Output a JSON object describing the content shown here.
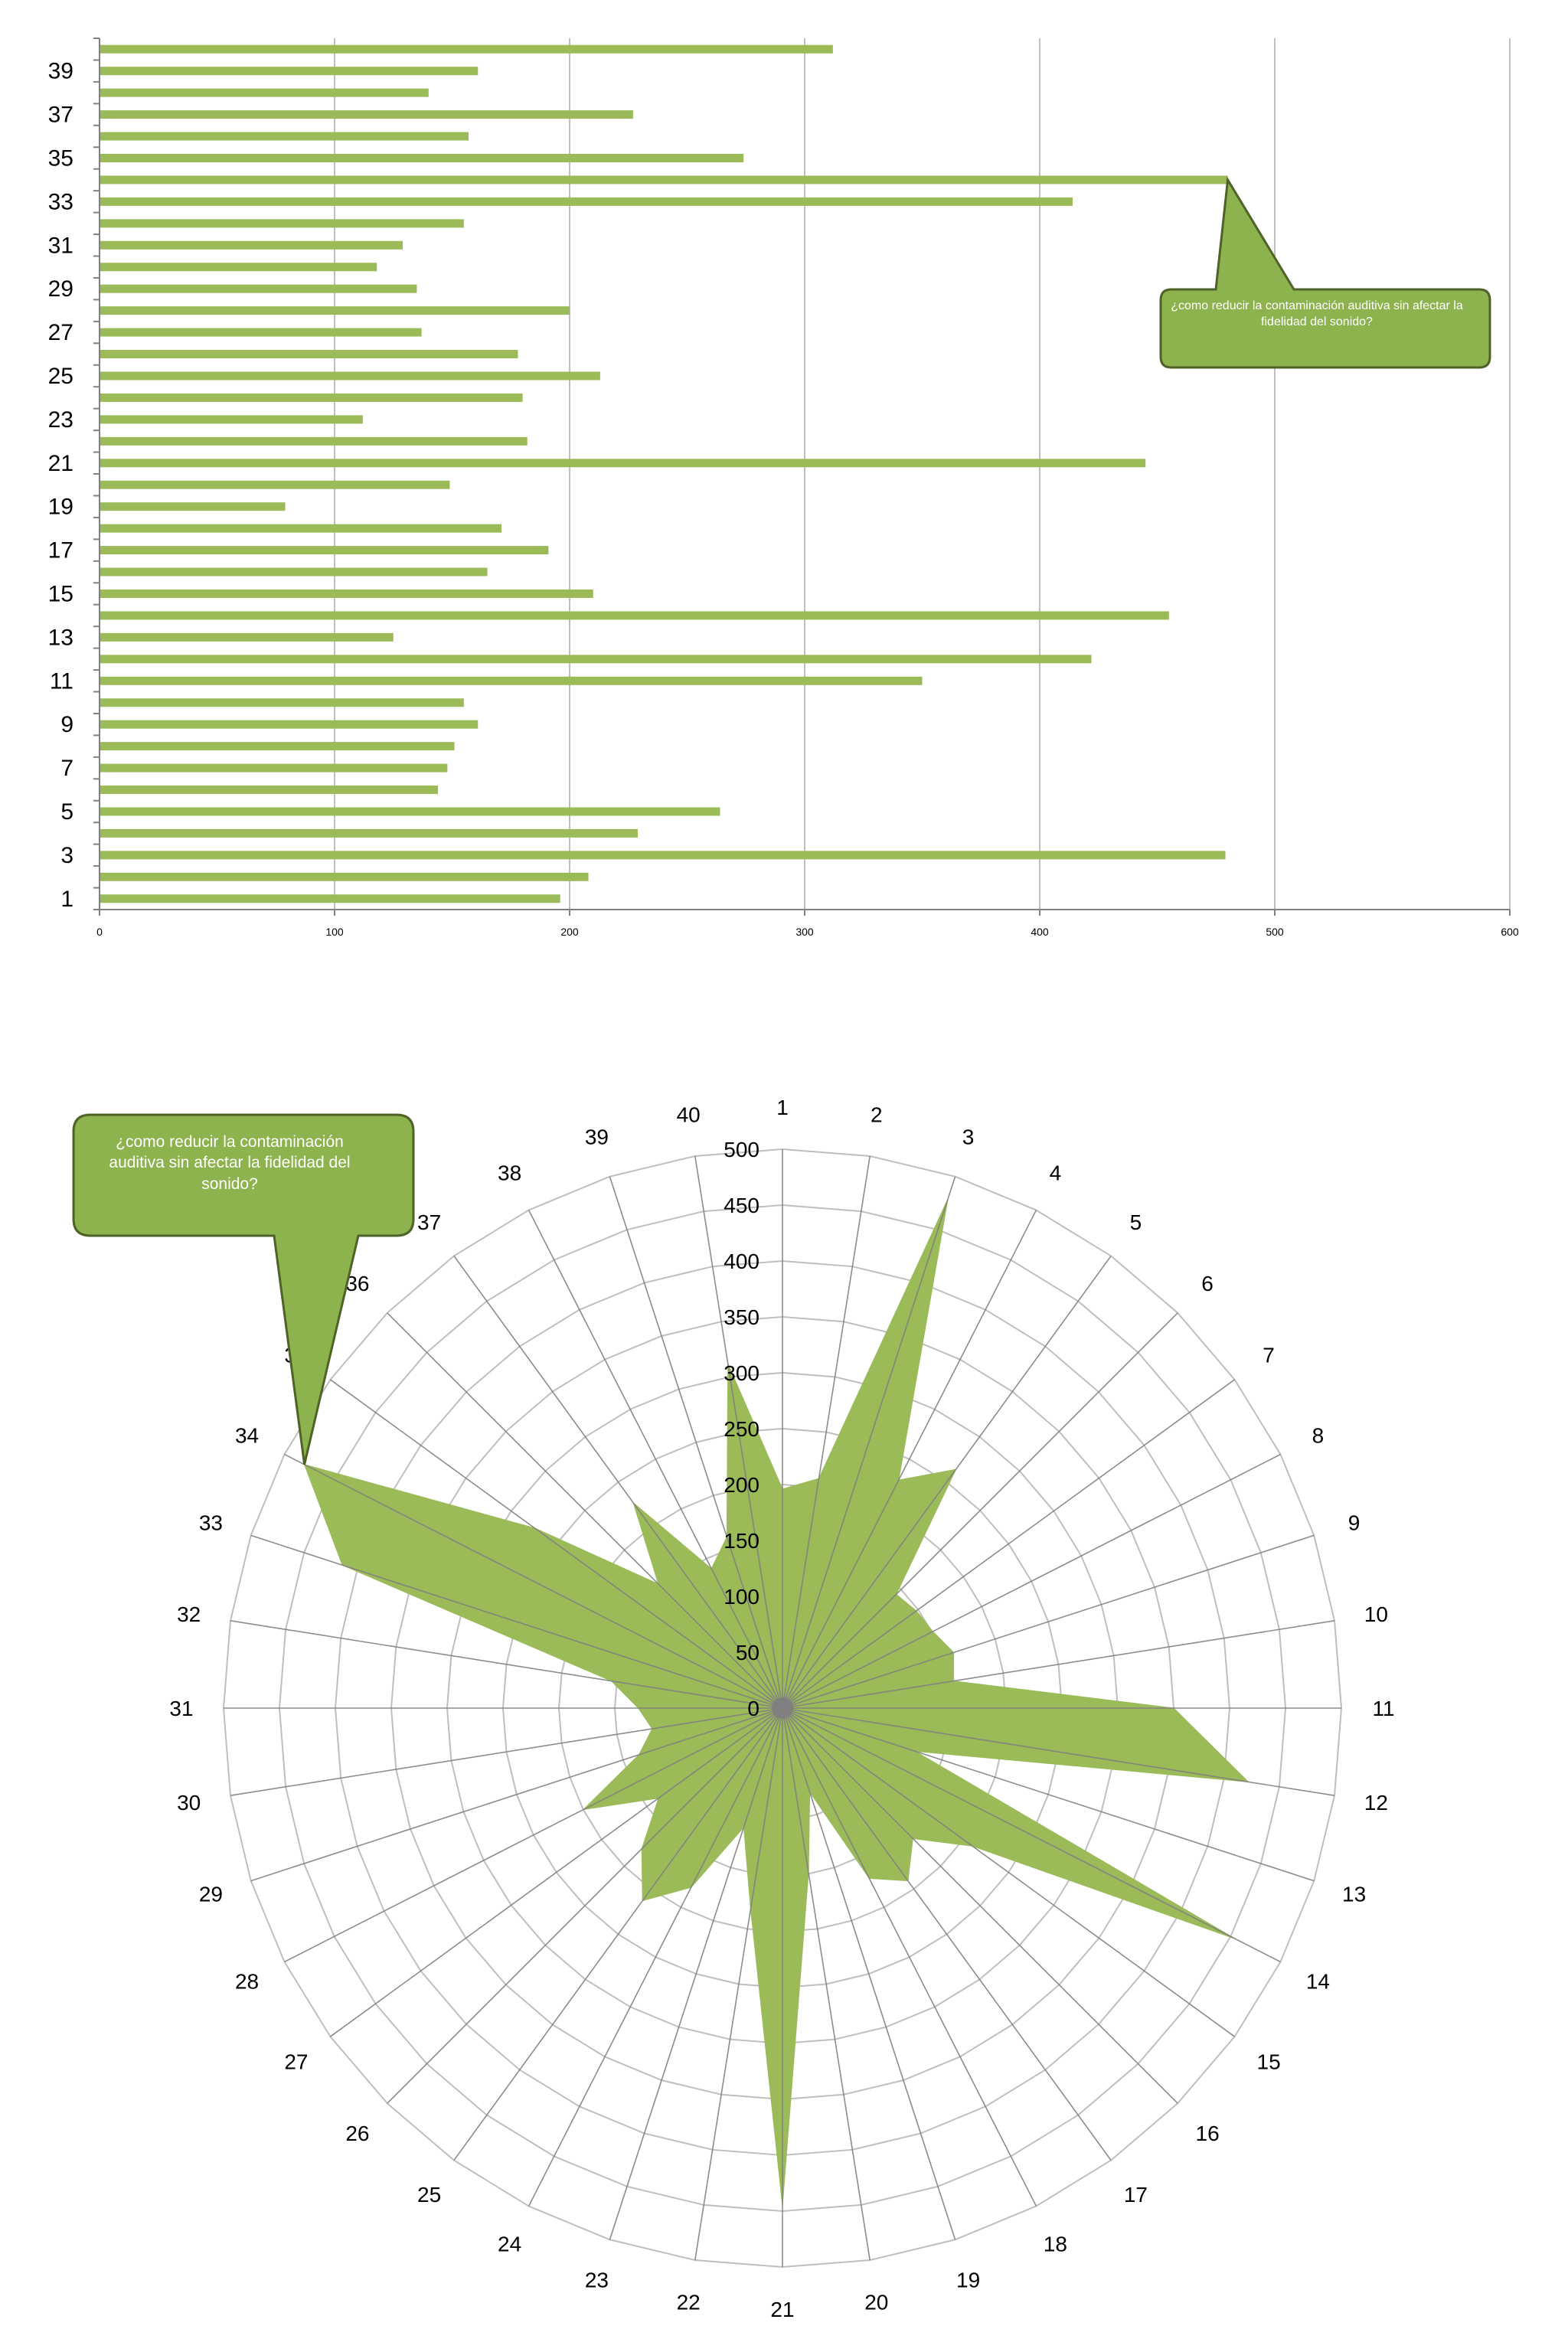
{
  "colors": {
    "bar": "#9bbb59",
    "radar_fill": "#9bbb59",
    "callout_fill": "#8db34e",
    "callout_stroke": "#4f6228",
    "grid": "#bfbfbf",
    "axis": "#808080",
    "text": "#000000"
  },
  "chart_data": [
    {
      "type": "bar",
      "orientation": "horizontal",
      "categories": [
        "1",
        "2",
        "3",
        "4",
        "5",
        "6",
        "7",
        "8",
        "9",
        "10",
        "11",
        "12",
        "13",
        "14",
        "15",
        "16",
        "17",
        "18",
        "19",
        "20",
        "21",
        "22",
        "23",
        "24",
        "25",
        "26",
        "27",
        "28",
        "29",
        "30",
        "31",
        "32",
        "33",
        "34",
        "35",
        "36",
        "37",
        "38",
        "39",
        "40"
      ],
      "category_tick_labels": [
        "1",
        "3",
        "5",
        "7",
        "9",
        "11",
        "13",
        "15",
        "17",
        "19",
        "21",
        "23",
        "25",
        "27",
        "29",
        "31",
        "33",
        "35",
        "37",
        "39"
      ],
      "values": [
        196,
        208,
        479,
        229,
        264,
        144,
        148,
        151,
        161,
        155,
        350,
        422,
        125,
        455,
        210,
        165,
        191,
        171,
        79,
        149,
        445,
        182,
        112,
        180,
        213,
        178,
        137,
        200,
        135,
        118,
        129,
        155,
        414,
        480,
        274,
        157,
        227,
        140,
        161,
        312
      ],
      "xlim": [
        0,
        600
      ],
      "x_ticks": [
        "0",
        "100",
        "200",
        "300",
        "400",
        "500",
        "600"
      ],
      "grid": "vertical",
      "title": "",
      "xlabel": "",
      "ylabel": "",
      "callout": {
        "text": "¿como reducir la contaminación auditiva sin afectar la fidelidad del sonido?",
        "points_to": "34"
      }
    },
    {
      "type": "radar",
      "categories": [
        "1",
        "2",
        "3",
        "4",
        "5",
        "6",
        "7",
        "8",
        "9",
        "10",
        "11",
        "12",
        "13",
        "14",
        "15",
        "16",
        "17",
        "18",
        "19",
        "20",
        "21",
        "22",
        "23",
        "24",
        "25",
        "26",
        "27",
        "28",
        "29",
        "30",
        "31",
        "32",
        "33",
        "34",
        "35",
        "36",
        "37",
        "38",
        "39",
        "40"
      ],
      "values": [
        196,
        208,
        479,
        229,
        264,
        144,
        148,
        151,
        161,
        155,
        350,
        422,
        125,
        455,
        210,
        165,
        191,
        171,
        79,
        149,
        445,
        182,
        112,
        180,
        213,
        178,
        137,
        200,
        135,
        118,
        129,
        155,
        414,
        480,
        274,
        157,
        227,
        140,
        161,
        312
      ],
      "rlim": [
        0,
        500
      ],
      "r_ticks": [
        "0",
        "50",
        "100",
        "150",
        "200",
        "250",
        "300",
        "350",
        "400",
        "450",
        "500"
      ],
      "fill": "filled",
      "callout": {
        "text": "¿como reducir la contaminación auditiva sin afectar la fidelidad del sonido?",
        "points_to": "34"
      }
    }
  ]
}
